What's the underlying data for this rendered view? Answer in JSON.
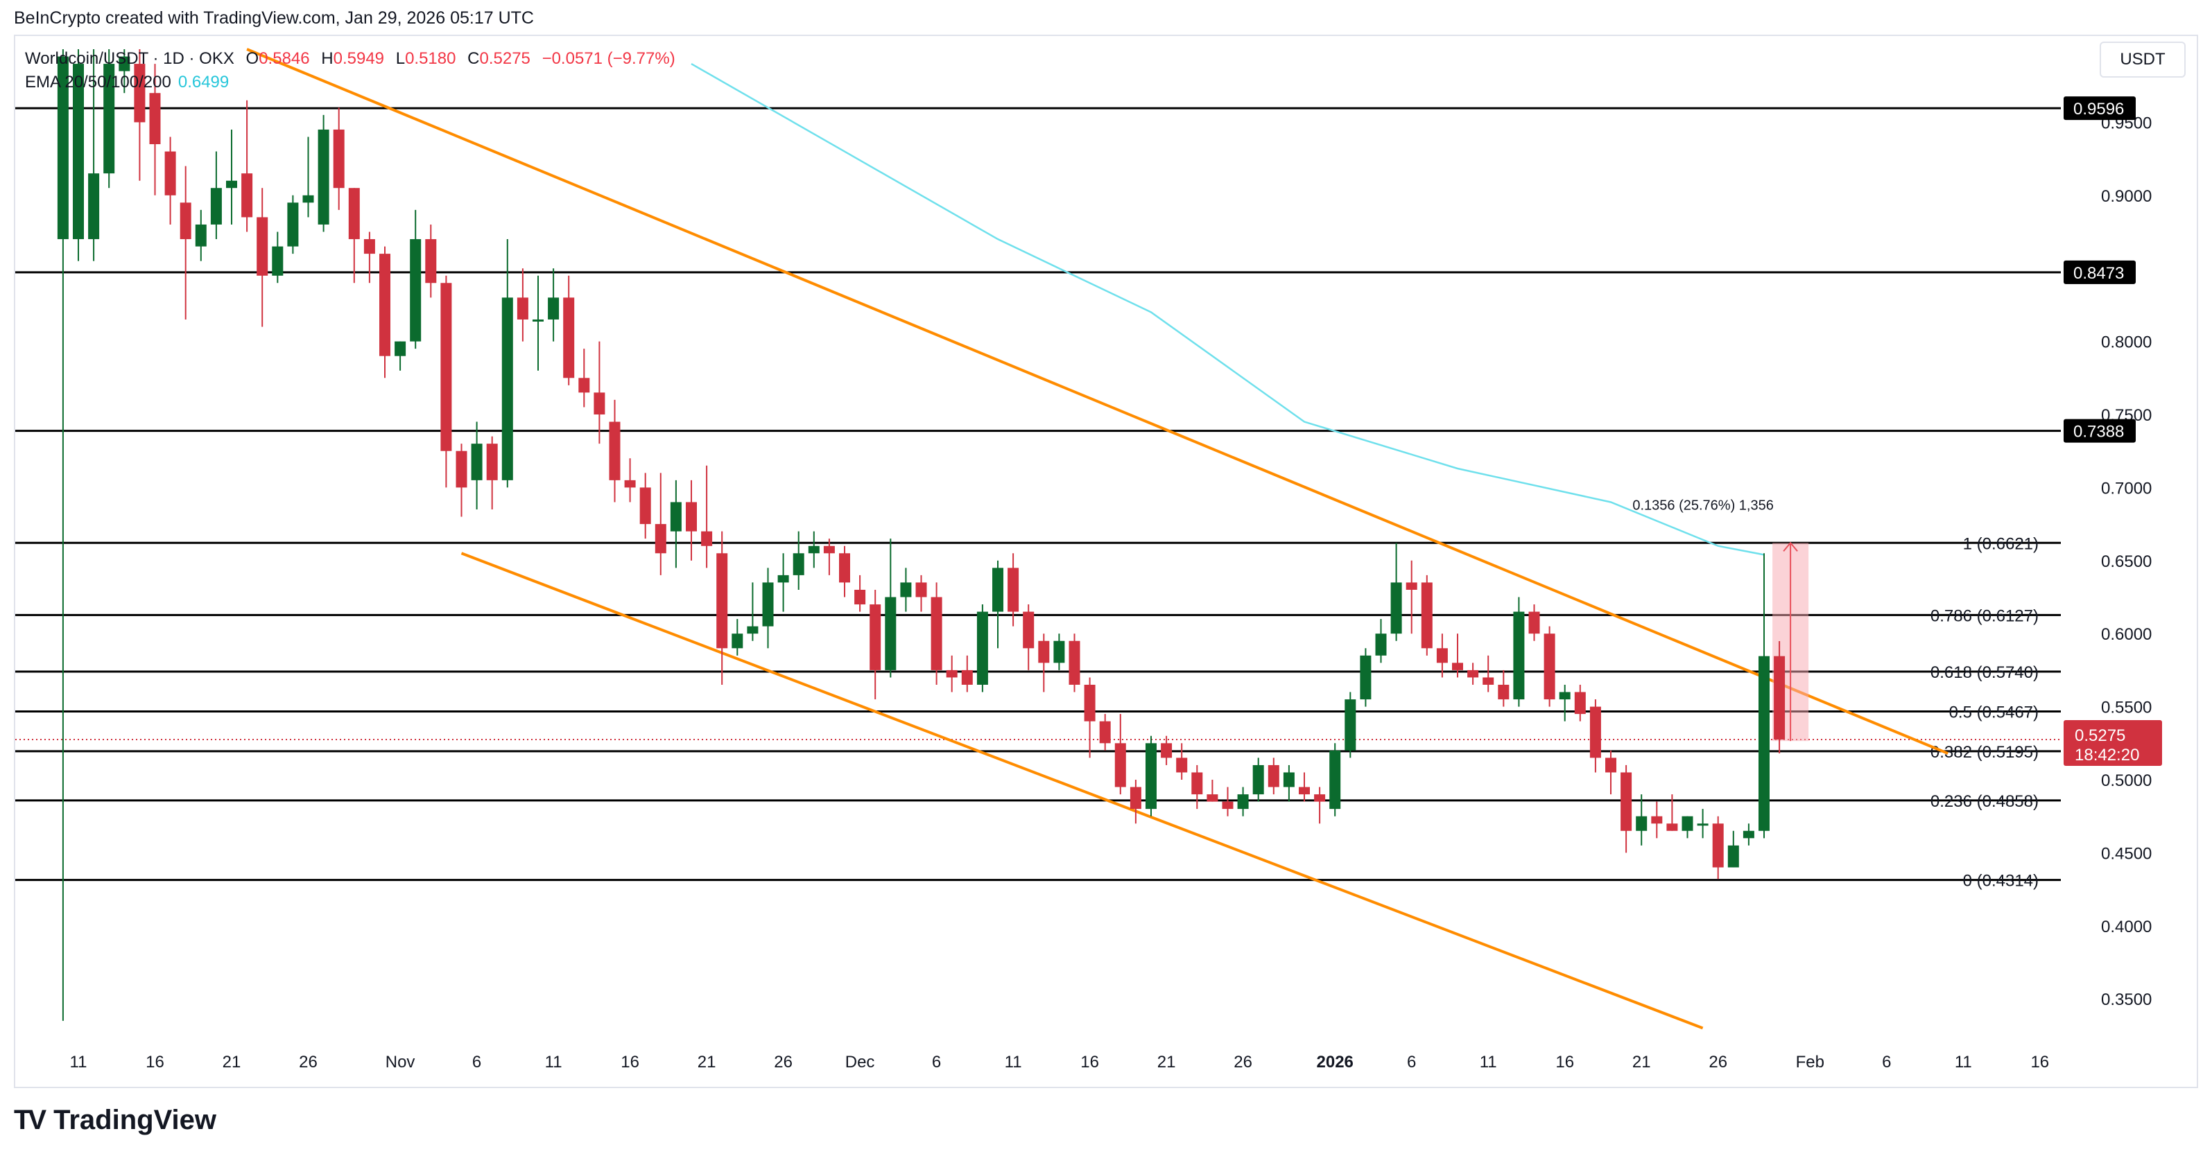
{
  "attribution": "BeInCrypto created with TradingView.com, Jan 29, 2026 05:17 UTC",
  "legend": {
    "symbol": "Worldcoin/USDT · 1D · OKX",
    "o_label": "O",
    "o_value": "0.5846",
    "h_label": "H",
    "h_value": "0.5949",
    "l_label": "L",
    "l_value": "0.5180",
    "c_label": "C",
    "c_value": "0.5275",
    "change": "−0.0571 (−9.77%)",
    "ema_label": "EMA 20/50/100/200",
    "ema_value": "0.6499"
  },
  "currency_button": "USDT",
  "footer": {
    "logo": "TV",
    "brand": "TradingView"
  },
  "colors": {
    "up": "#0b6b2e",
    "down": "#d0323f",
    "channel": "#ff8c00",
    "ema": "#6fe0ec",
    "level": "#000000"
  },
  "chart_data": {
    "type": "candlestick",
    "symbol": "Worldcoin/USDT",
    "interval": "1D",
    "ylim": [
      0.33,
      0.995
    ],
    "y_ticks": [
      "0.9500",
      "0.9000",
      "0.8000",
      "0.7500",
      "0.7000",
      "0.6500",
      "0.6000",
      "0.5500",
      "0.5000",
      "0.4500",
      "0.4000",
      "0.3500"
    ],
    "x_ticks": [
      "11",
      "16",
      "21",
      "26",
      "Nov",
      "6",
      "11",
      "16",
      "21",
      "26",
      "Dec",
      "6",
      "11",
      "16",
      "21",
      "26",
      "2026",
      "6",
      "11",
      "16",
      "21",
      "26",
      "Feb",
      "6",
      "11",
      "16"
    ],
    "x_tick_days": [
      0,
      5,
      10,
      15,
      21,
      26,
      31,
      36,
      41,
      46,
      51,
      56,
      61,
      66,
      71,
      76,
      82,
      87,
      92,
      97,
      102,
      107,
      113,
      118,
      123,
      128
    ],
    "horizontal_levels": [
      {
        "value": 0.9596,
        "label": "0.9596",
        "fib": ""
      },
      {
        "value": 0.8473,
        "label": "0.8473",
        "fib": ""
      },
      {
        "value": 0.7388,
        "label": "0.7388",
        "fib": ""
      },
      {
        "value": 0.6621,
        "label": "",
        "fib": "1 (0.6621)"
      },
      {
        "value": 0.6127,
        "label": "",
        "fib": "0.786 (0.6127)"
      },
      {
        "value": 0.574,
        "label": "",
        "fib": "0.618 (0.5740)"
      },
      {
        "value": 0.5467,
        "label": "",
        "fib": "0.5 (0.5467)"
      },
      {
        "value": 0.5195,
        "label": "",
        "fib": "0.382 (0.5195)"
      },
      {
        "value": 0.4858,
        "label": "",
        "fib": "0.236 (0.4858)"
      },
      {
        "value": 0.4314,
        "label": "",
        "fib": "0 (0.4314)"
      }
    ],
    "current_price": {
      "value": 0.5275,
      "label": "0.5275",
      "countdown": "18:42:20"
    },
    "measure": {
      "from": 0.5265,
      "to": 0.6621,
      "label": "0.1356 (25.76%) 1,356"
    },
    "channel": {
      "upper": [
        [
          11,
          1.0
        ],
        [
          122,
          0.518
        ]
      ],
      "lower": [
        [
          25,
          0.655
        ],
        [
          106,
          0.33
        ]
      ]
    },
    "ema200": [
      [
        40,
        0.99
      ],
      [
        50,
        0.93
      ],
      [
        60,
        0.87
      ],
      [
        70,
        0.82
      ],
      [
        80,
        0.745
      ],
      [
        90,
        0.713
      ],
      [
        100,
        0.69
      ],
      [
        107,
        0.66
      ],
      [
        110,
        0.654
      ]
    ],
    "candles": [
      {
        "d": -1,
        "o": 0.87,
        "h": 1.0,
        "l": 0.335,
        "c": 0.995
      },
      {
        "d": 0,
        "o": 0.87,
        "h": 1.0,
        "l": 0.855,
        "c": 0.99
      },
      {
        "d": 1,
        "o": 0.87,
        "h": 1.0,
        "l": 0.855,
        "c": 0.915
      },
      {
        "d": 2,
        "o": 0.915,
        "h": 1.0,
        "l": 0.905,
        "c": 0.99
      },
      {
        "d": 3,
        "o": 0.985,
        "h": 1.0,
        "l": 0.97,
        "c": 0.995
      },
      {
        "d": 4,
        "o": 0.99,
        "h": 1.0,
        "l": 0.91,
        "c": 0.95
      },
      {
        "d": 5,
        "o": 0.97,
        "h": 0.99,
        "l": 0.9,
        "c": 0.935
      },
      {
        "d": 6,
        "o": 0.93,
        "h": 0.94,
        "l": 0.88,
        "c": 0.9
      },
      {
        "d": 7,
        "o": 0.895,
        "h": 0.92,
        "l": 0.815,
        "c": 0.87
      },
      {
        "d": 8,
        "o": 0.865,
        "h": 0.89,
        "l": 0.855,
        "c": 0.88
      },
      {
        "d": 9,
        "o": 0.88,
        "h": 0.93,
        "l": 0.87,
        "c": 0.905
      },
      {
        "d": 10,
        "o": 0.905,
        "h": 0.945,
        "l": 0.88,
        "c": 0.91
      },
      {
        "d": 11,
        "o": 0.915,
        "h": 0.965,
        "l": 0.875,
        "c": 0.885
      },
      {
        "d": 12,
        "o": 0.885,
        "h": 0.905,
        "l": 0.81,
        "c": 0.845
      },
      {
        "d": 13,
        "o": 0.845,
        "h": 0.875,
        "l": 0.84,
        "c": 0.865
      },
      {
        "d": 14,
        "o": 0.865,
        "h": 0.9,
        "l": 0.86,
        "c": 0.895
      },
      {
        "d": 15,
        "o": 0.895,
        "h": 0.94,
        "l": 0.885,
        "c": 0.9
      },
      {
        "d": 16,
        "o": 0.88,
        "h": 0.955,
        "l": 0.875,
        "c": 0.945
      },
      {
        "d": 17,
        "o": 0.945,
        "h": 0.96,
        "l": 0.89,
        "c": 0.905
      },
      {
        "d": 18,
        "o": 0.905,
        "h": 0.905,
        "l": 0.84,
        "c": 0.87
      },
      {
        "d": 19,
        "o": 0.87,
        "h": 0.875,
        "l": 0.84,
        "c": 0.86
      },
      {
        "d": 20,
        "o": 0.86,
        "h": 0.865,
        "l": 0.775,
        "c": 0.79
      },
      {
        "d": 21,
        "o": 0.79,
        "h": 0.8,
        "l": 0.78,
        "c": 0.8
      },
      {
        "d": 22,
        "o": 0.8,
        "h": 0.89,
        "l": 0.795,
        "c": 0.87
      },
      {
        "d": 23,
        "o": 0.87,
        "h": 0.88,
        "l": 0.83,
        "c": 0.84
      },
      {
        "d": 24,
        "o": 0.84,
        "h": 0.845,
        "l": 0.7,
        "c": 0.725
      },
      {
        "d": 25,
        "o": 0.725,
        "h": 0.73,
        "l": 0.68,
        "c": 0.7
      },
      {
        "d": 26,
        "o": 0.705,
        "h": 0.745,
        "l": 0.685,
        "c": 0.73
      },
      {
        "d": 27,
        "o": 0.73,
        "h": 0.735,
        "l": 0.685,
        "c": 0.705
      },
      {
        "d": 28,
        "o": 0.705,
        "h": 0.87,
        "l": 0.7,
        "c": 0.83
      },
      {
        "d": 29,
        "o": 0.83,
        "h": 0.85,
        "l": 0.8,
        "c": 0.815
      },
      {
        "d": 30,
        "o": 0.815,
        "h": 0.845,
        "l": 0.78,
        "c": 0.815
      },
      {
        "d": 31,
        "o": 0.815,
        "h": 0.85,
        "l": 0.8,
        "c": 0.83
      },
      {
        "d": 32,
        "o": 0.83,
        "h": 0.845,
        "l": 0.77,
        "c": 0.775
      },
      {
        "d": 33,
        "o": 0.775,
        "h": 0.795,
        "l": 0.755,
        "c": 0.765
      },
      {
        "d": 34,
        "o": 0.765,
        "h": 0.8,
        "l": 0.73,
        "c": 0.75
      },
      {
        "d": 35,
        "o": 0.745,
        "h": 0.76,
        "l": 0.69,
        "c": 0.705
      },
      {
        "d": 36,
        "o": 0.705,
        "h": 0.72,
        "l": 0.69,
        "c": 0.7
      },
      {
        "d": 37,
        "o": 0.7,
        "h": 0.71,
        "l": 0.665,
        "c": 0.675
      },
      {
        "d": 38,
        "o": 0.675,
        "h": 0.71,
        "l": 0.64,
        "c": 0.655
      },
      {
        "d": 39,
        "o": 0.67,
        "h": 0.705,
        "l": 0.645,
        "c": 0.69
      },
      {
        "d": 40,
        "o": 0.69,
        "h": 0.705,
        "l": 0.65,
        "c": 0.67
      },
      {
        "d": 41,
        "o": 0.67,
        "h": 0.715,
        "l": 0.645,
        "c": 0.66
      },
      {
        "d": 42,
        "o": 0.655,
        "h": 0.67,
        "l": 0.565,
        "c": 0.59
      },
      {
        "d": 43,
        "o": 0.59,
        "h": 0.61,
        "l": 0.585,
        "c": 0.6
      },
      {
        "d": 44,
        "o": 0.6,
        "h": 0.635,
        "l": 0.595,
        "c": 0.605
      },
      {
        "d": 45,
        "o": 0.605,
        "h": 0.645,
        "l": 0.59,
        "c": 0.635
      },
      {
        "d": 46,
        "o": 0.635,
        "h": 0.655,
        "l": 0.615,
        "c": 0.64
      },
      {
        "d": 47,
        "o": 0.64,
        "h": 0.67,
        "l": 0.63,
        "c": 0.655
      },
      {
        "d": 48,
        "o": 0.655,
        "h": 0.67,
        "l": 0.645,
        "c": 0.66
      },
      {
        "d": 49,
        "o": 0.66,
        "h": 0.665,
        "l": 0.64,
        "c": 0.655
      },
      {
        "d": 50,
        "o": 0.655,
        "h": 0.66,
        "l": 0.625,
        "c": 0.635
      },
      {
        "d": 51,
        "o": 0.63,
        "h": 0.64,
        "l": 0.615,
        "c": 0.62
      },
      {
        "d": 52,
        "o": 0.62,
        "h": 0.63,
        "l": 0.555,
        "c": 0.575
      },
      {
        "d": 53,
        "o": 0.575,
        "h": 0.665,
        "l": 0.57,
        "c": 0.625
      },
      {
        "d": 54,
        "o": 0.625,
        "h": 0.645,
        "l": 0.615,
        "c": 0.635
      },
      {
        "d": 55,
        "o": 0.635,
        "h": 0.64,
        "l": 0.615,
        "c": 0.625
      },
      {
        "d": 56,
        "o": 0.625,
        "h": 0.635,
        "l": 0.565,
        "c": 0.575
      },
      {
        "d": 57,
        "o": 0.575,
        "h": 0.585,
        "l": 0.56,
        "c": 0.57
      },
      {
        "d": 58,
        "o": 0.575,
        "h": 0.585,
        "l": 0.56,
        "c": 0.565
      },
      {
        "d": 59,
        "o": 0.565,
        "h": 0.62,
        "l": 0.56,
        "c": 0.615
      },
      {
        "d": 60,
        "o": 0.615,
        "h": 0.65,
        "l": 0.59,
        "c": 0.645
      },
      {
        "d": 61,
        "o": 0.645,
        "h": 0.655,
        "l": 0.605,
        "c": 0.615
      },
      {
        "d": 62,
        "o": 0.615,
        "h": 0.62,
        "l": 0.575,
        "c": 0.59
      },
      {
        "d": 63,
        "o": 0.595,
        "h": 0.6,
        "l": 0.56,
        "c": 0.58
      },
      {
        "d": 64,
        "o": 0.58,
        "h": 0.6,
        "l": 0.575,
        "c": 0.595
      },
      {
        "d": 65,
        "o": 0.595,
        "h": 0.6,
        "l": 0.56,
        "c": 0.565
      },
      {
        "d": 66,
        "o": 0.565,
        "h": 0.57,
        "l": 0.515,
        "c": 0.54
      },
      {
        "d": 67,
        "o": 0.54,
        "h": 0.545,
        "l": 0.52,
        "c": 0.525
      },
      {
        "d": 68,
        "o": 0.525,
        "h": 0.545,
        "l": 0.49,
        "c": 0.495
      },
      {
        "d": 69,
        "o": 0.495,
        "h": 0.5,
        "l": 0.47,
        "c": 0.48
      },
      {
        "d": 70,
        "o": 0.48,
        "h": 0.53,
        "l": 0.475,
        "c": 0.525
      },
      {
        "d": 71,
        "o": 0.525,
        "h": 0.53,
        "l": 0.51,
        "c": 0.515
      },
      {
        "d": 72,
        "o": 0.515,
        "h": 0.525,
        "l": 0.5,
        "c": 0.505
      },
      {
        "d": 73,
        "o": 0.505,
        "h": 0.51,
        "l": 0.48,
        "c": 0.49
      },
      {
        "d": 74,
        "o": 0.49,
        "h": 0.5,
        "l": 0.485,
        "c": 0.485
      },
      {
        "d": 75,
        "o": 0.485,
        "h": 0.495,
        "l": 0.475,
        "c": 0.48
      },
      {
        "d": 76,
        "o": 0.48,
        "h": 0.495,
        "l": 0.475,
        "c": 0.49
      },
      {
        "d": 77,
        "o": 0.49,
        "h": 0.515,
        "l": 0.485,
        "c": 0.51
      },
      {
        "d": 78,
        "o": 0.51,
        "h": 0.515,
        "l": 0.49,
        "c": 0.495
      },
      {
        "d": 79,
        "o": 0.495,
        "h": 0.51,
        "l": 0.485,
        "c": 0.505
      },
      {
        "d": 80,
        "o": 0.495,
        "h": 0.505,
        "l": 0.485,
        "c": 0.49
      },
      {
        "d": 81,
        "o": 0.49,
        "h": 0.495,
        "l": 0.47,
        "c": 0.485
      },
      {
        "d": 82,
        "o": 0.48,
        "h": 0.525,
        "l": 0.475,
        "c": 0.52
      },
      {
        "d": 83,
        "o": 0.52,
        "h": 0.56,
        "l": 0.515,
        "c": 0.555
      },
      {
        "d": 84,
        "o": 0.555,
        "h": 0.59,
        "l": 0.55,
        "c": 0.585
      },
      {
        "d": 85,
        "o": 0.585,
        "h": 0.61,
        "l": 0.58,
        "c": 0.6
      },
      {
        "d": 86,
        "o": 0.6,
        "h": 0.662,
        "l": 0.595,
        "c": 0.635
      },
      {
        "d": 87,
        "o": 0.635,
        "h": 0.65,
        "l": 0.6,
        "c": 0.63
      },
      {
        "d": 88,
        "o": 0.635,
        "h": 0.64,
        "l": 0.585,
        "c": 0.59
      },
      {
        "d": 89,
        "o": 0.59,
        "h": 0.6,
        "l": 0.57,
        "c": 0.58
      },
      {
        "d": 90,
        "o": 0.58,
        "h": 0.6,
        "l": 0.57,
        "c": 0.575
      },
      {
        "d": 91,
        "o": 0.575,
        "h": 0.58,
        "l": 0.565,
        "c": 0.57
      },
      {
        "d": 92,
        "o": 0.57,
        "h": 0.585,
        "l": 0.56,
        "c": 0.565
      },
      {
        "d": 93,
        "o": 0.565,
        "h": 0.575,
        "l": 0.55,
        "c": 0.555
      },
      {
        "d": 94,
        "o": 0.555,
        "h": 0.625,
        "l": 0.55,
        "c": 0.615
      },
      {
        "d": 95,
        "o": 0.615,
        "h": 0.62,
        "l": 0.595,
        "c": 0.6
      },
      {
        "d": 96,
        "o": 0.6,
        "h": 0.605,
        "l": 0.55,
        "c": 0.555
      },
      {
        "d": 97,
        "o": 0.555,
        "h": 0.565,
        "l": 0.54,
        "c": 0.56
      },
      {
        "d": 98,
        "o": 0.56,
        "h": 0.565,
        "l": 0.54,
        "c": 0.545
      },
      {
        "d": 99,
        "o": 0.55,
        "h": 0.555,
        "l": 0.505,
        "c": 0.515
      },
      {
        "d": 100,
        "o": 0.515,
        "h": 0.52,
        "l": 0.49,
        "c": 0.505
      },
      {
        "d": 101,
        "o": 0.505,
        "h": 0.51,
        "l": 0.45,
        "c": 0.465
      },
      {
        "d": 102,
        "o": 0.465,
        "h": 0.49,
        "l": 0.455,
        "c": 0.475
      },
      {
        "d": 103,
        "o": 0.475,
        "h": 0.485,
        "l": 0.46,
        "c": 0.47
      },
      {
        "d": 104,
        "o": 0.47,
        "h": 0.49,
        "l": 0.465,
        "c": 0.465
      },
      {
        "d": 105,
        "o": 0.465,
        "h": 0.475,
        "l": 0.46,
        "c": 0.475
      },
      {
        "d": 106,
        "o": 0.47,
        "h": 0.48,
        "l": 0.46,
        "c": 0.47
      },
      {
        "d": 107,
        "o": 0.47,
        "h": 0.475,
        "l": 0.432,
        "c": 0.44
      },
      {
        "d": 108,
        "o": 0.44,
        "h": 0.465,
        "l": 0.44,
        "c": 0.455
      },
      {
        "d": 109,
        "o": 0.46,
        "h": 0.47,
        "l": 0.455,
        "c": 0.465
      },
      {
        "d": 110,
        "o": 0.465,
        "h": 0.655,
        "l": 0.46,
        "c": 0.5846
      },
      {
        "d": 111,
        "o": 0.5846,
        "h": 0.5949,
        "l": 0.518,
        "c": 0.5275
      }
    ]
  }
}
